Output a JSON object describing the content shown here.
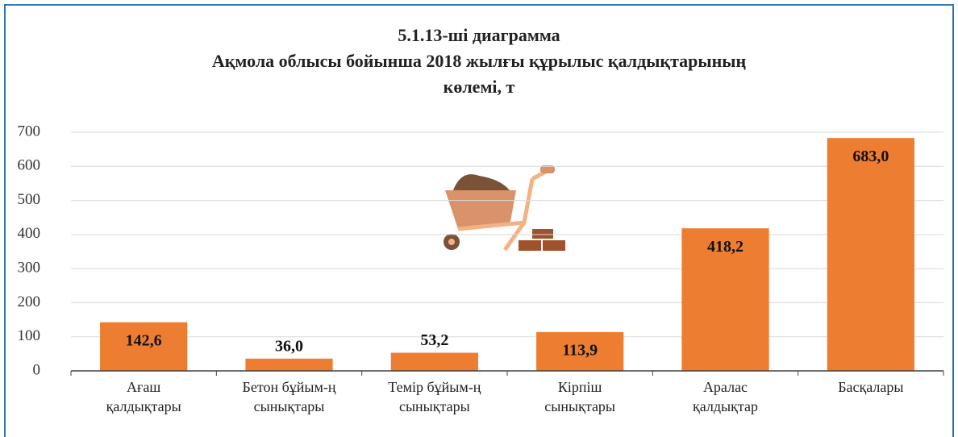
{
  "chart_data": {
    "type": "bar",
    "title": [
      "5.1.13-ші диаграмма",
      "Ақмола облысы бойынша 2018 жылғы құрылыс қалдықтарының",
      "көлемі, т"
    ],
    "categories": [
      [
        "Ағаш",
        "қалдықтары"
      ],
      [
        "Бетон бұйым-ң",
        "сынықтары"
      ],
      [
        "Темір бұйым-ң",
        "сынықтары"
      ],
      [
        "Кірпіш",
        "сынықтары"
      ],
      [
        "Аралас",
        "қалдықтар"
      ],
      [
        "Басқалары"
      ]
    ],
    "values": [
      142.6,
      36.0,
      53.2,
      113.9,
      418.2,
      683.0
    ],
    "value_labels": [
      "142,6",
      "36,0",
      "53,2",
      "113,9",
      "418,2",
      "683,0"
    ],
    "color": "#ed7d31",
    "ylim": [
      0,
      700
    ],
    "yticks": [
      0,
      100,
      200,
      300,
      400,
      500,
      600,
      700
    ],
    "grid": true
  }
}
